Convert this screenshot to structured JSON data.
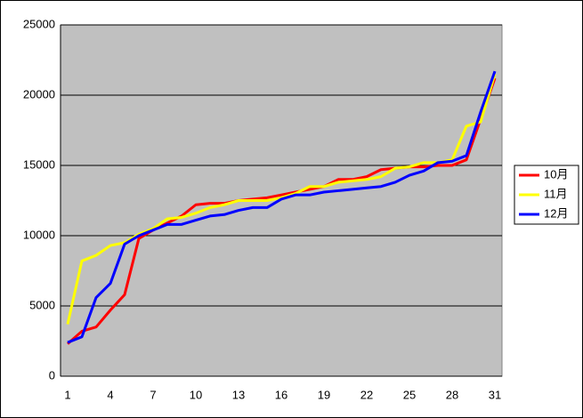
{
  "chart_data": {
    "type": "line",
    "categories": [
      1,
      null,
      null,
      4,
      null,
      null,
      7,
      null,
      null,
      10,
      null,
      null,
      13,
      null,
      null,
      16,
      null,
      null,
      19,
      null,
      null,
      22,
      null,
      null,
      25,
      null,
      null,
      28,
      null,
      null,
      31
    ],
    "series": [
      {
        "name": "10月",
        "color": "#ff0000",
        "values": [
          2300,
          3200,
          3500,
          4700,
          5800,
          9800,
          10400,
          10900,
          11400,
          12200,
          12300,
          12300,
          12500,
          12600,
          12700,
          12900,
          13100,
          13300,
          13500,
          14000,
          14000,
          14200,
          14700,
          14800,
          14900,
          14900,
          15000,
          15000,
          15400,
          18300,
          21200
        ]
      },
      {
        "name": "11月",
        "color": "#ffff00",
        "values": [
          3700,
          8200,
          8600,
          9300,
          9500,
          10100,
          10500,
          11200,
          11300,
          11600,
          12000,
          12200,
          12500,
          12500,
          12500,
          12700,
          13000,
          13500,
          13500,
          13800,
          13900,
          14000,
          14200,
          14800,
          14900,
          15200,
          15200,
          15400,
          17800,
          18100,
          21500
        ]
      },
      {
        "name": "12月",
        "color": "#0000ff",
        "values": [
          2400,
          2800,
          5600,
          6600,
          9400,
          10000,
          10400,
          10800,
          10800,
          11100,
          11400,
          11500,
          11800,
          12000,
          12000,
          12600,
          12900,
          12900,
          13100,
          13200,
          13300,
          13400,
          13500,
          13800,
          14300,
          14600,
          15200,
          15300,
          15700,
          18800,
          21700
        ]
      }
    ],
    "ylim": [
      0,
      25000
    ],
    "yticks": [
      0,
      5000,
      10000,
      15000,
      20000,
      25000
    ],
    "grid": true,
    "legend": "right",
    "background": "#c0c0c0"
  }
}
